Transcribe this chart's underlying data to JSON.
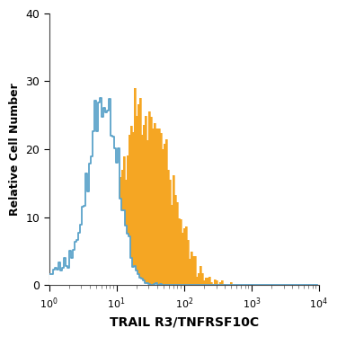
{
  "title": "",
  "xlabel": "TRAIL R3/TNFRSF10C",
  "ylabel": "Relative Cell Number",
  "xlim_log": [
    0,
    4
  ],
  "ylim": [
    0,
    40
  ],
  "yticks": [
    0,
    10,
    20,
    30,
    40
  ],
  "background_color": "#ffffff",
  "orange_color": "#f5a623",
  "orange_edge_color": "#c07800",
  "blue_color": "#5ba3c9",
  "blue_fill_color": "#ffffff",
  "blue_peak_log_x": 0.82,
  "blue_log_std": 0.22,
  "blue_n_samples": 4000,
  "blue_peak_y": 27.5,
  "orange_peak_log_x": 1.42,
  "orange_log_std": 0.38,
  "orange_n_samples": 4000,
  "orange_bg_n": 300,
  "orange_peak_y": 29.0,
  "n_bins": 150,
  "figsize": [
    3.75,
    3.75
  ],
  "dpi": 100
}
